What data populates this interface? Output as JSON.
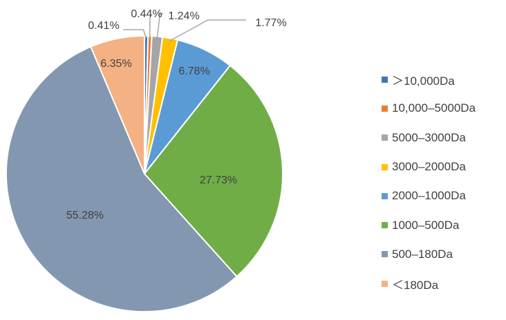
{
  "chart_data": {
    "type": "pie",
    "start_angle_deg": 0,
    "direction": "clockwise",
    "legend_position": "right",
    "categories": [
      ">10,000Da",
      "10,000–5000Da",
      "5000–3000Da",
      "3000–2000Da",
      "2000–1000Da",
      "1000–500Da",
      "500–180Da",
      "<180Da"
    ],
    "legend_labels": [
      "＞10,000Da",
      "10,000–5000Da",
      "5000–3000Da",
      "3000–2000Da",
      "2000–1000Da",
      "1000–500Da",
      "500–180Da",
      "＜180Da"
    ],
    "values": [
      0.41,
      0.44,
      1.24,
      1.77,
      6.78,
      27.73,
      55.28,
      6.35
    ],
    "labels": [
      "0.41%",
      "0.44%",
      "1.24%",
      "1.77%",
      "6.78%",
      "27.73%",
      "55.28%",
      "6.35%"
    ],
    "colors": [
      "#4472C4",
      "#ED7D31",
      "#A5A5A5",
      "#FFC000",
      "#5B9BD5",
      "#70AD47",
      "#8497B0",
      "#F4B183"
    ]
  }
}
